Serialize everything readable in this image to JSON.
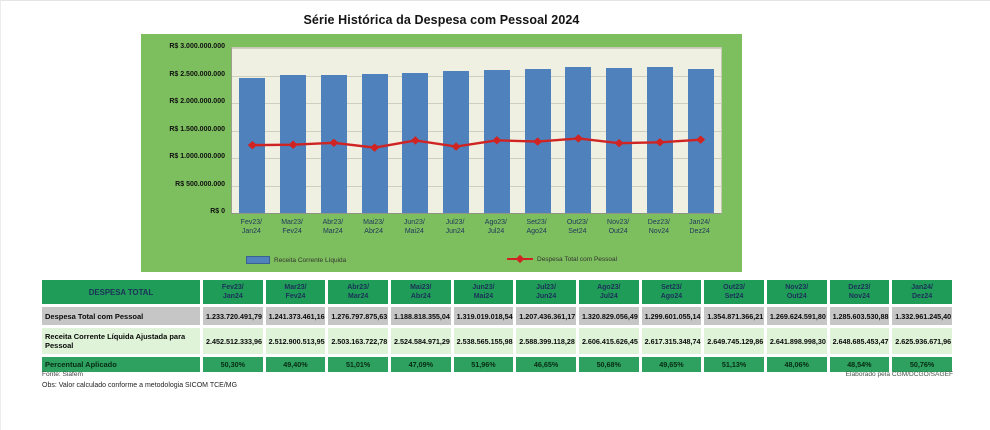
{
  "page": {
    "title": "Série Histórica da Despesa com Pessoal 2024"
  },
  "chart_data": {
    "type": "bar",
    "title": "Série Histórica da Despesa com Pessoal 2024",
    "categories": [
      "Fev23/\nJan24",
      "Mar23/\nFev24",
      "Abr23/\nMar24",
      "Mai23/\nAbr24",
      "Jun23/\nMai24",
      "Jul23/\nJun24",
      "Ago23/\nJul24",
      "Set23/\nAgo24",
      "Out23/\nSet24",
      "Nov23/\nOut24",
      "Dez23/\nNov24",
      "Jan24/\nDez24"
    ],
    "series": [
      {
        "name": "Receita Corrente Líquida",
        "type": "bar",
        "color": "#4f81bd",
        "values": [
          2452512333.96,
          2512900513.95,
          2503163722.78,
          2524584971.29,
          2538565155.98,
          2588399118.28,
          2606415626.45,
          2617315348.74,
          2649745129.86,
          2641898998.3,
          2648685453.47,
          2625936671.96
        ]
      },
      {
        "name": "Despesa Total com Pessoal",
        "type": "line",
        "color": "#d02423",
        "values": [
          1233720491.79,
          1241373461.16,
          1276797875.63,
          1188818355.04,
          1319019018.54,
          1207436361.17,
          1320829056.49,
          1299601055.14,
          1354871366.21,
          1269624591.8,
          1285603530.88,
          1332961245.4
        ]
      }
    ],
    "y_ticks": [
      "R$ 3.000.000.000",
      "R$ 2.500.000.000",
      "R$ 2.000.000.000",
      "R$ 1.500.000.000",
      "R$ 1.000.000.000",
      "R$ 500.000.000",
      "R$ 0"
    ],
    "ylim": [
      0,
      3000000000
    ],
    "grid": true,
    "legend_position": "bottom"
  },
  "table": {
    "corner_header": "DESPESA TOTAL",
    "period_headers": [
      "Fev23/\nJan24",
      "Mar23/\nFev24",
      "Abr23/\nMar24",
      "Mai23/\nAbr24",
      "Jun23/\nMai24",
      "Jul23/\nJun24",
      "Ago23/\nJul24",
      "Set23/\nAgo24",
      "Out23/\nSet24",
      "Nov23/\nOut24",
      "Dez23/\nNov24",
      "Jan24/\nDez24"
    ],
    "rows": [
      {
        "label": "Despesa Total com Pessoal",
        "values": [
          "1.233.720.491,79",
          "1.241.373.461,16",
          "1.276.797.875,63",
          "1.188.818.355,04",
          "1.319.019.018,54",
          "1.207.436.361,17",
          "1.320.829.056,49",
          "1.299.601.055,14",
          "1.354.871.366,21",
          "1.269.624.591,80",
          "1.285.603.530,88",
          "1.332.961.245,40"
        ]
      },
      {
        "label": "Receita Corrente Líquida Ajustada para Pessoal",
        "values": [
          "2.452.512.333,96",
          "2.512.900.513,95",
          "2.503.163.722,78",
          "2.524.584.971,29",
          "2.538.565.155,98",
          "2.588.399.118,28",
          "2.606.415.626,45",
          "2.617.315.348,74",
          "2.649.745.129,86",
          "2.641.898.998,30",
          "2.648.685.453,47",
          "2.625.936.671,96"
        ]
      },
      {
        "label": "Percentual Aplicado",
        "values": [
          "50,30%",
          "49,40%",
          "51,01%",
          "47,09%",
          "51,96%",
          "46,65%",
          "50,68%",
          "49,65%",
          "51,13%",
          "48,06%",
          "48,54%",
          "50,76%"
        ]
      }
    ]
  },
  "footnotes": {
    "fonte": "Fonte: Siafem",
    "obs": "Obs: Valor calculado conforme a metodologia SICOM TCE/MG",
    "elaborado": "Elaborado pela CGM/DCGO/SAGEF"
  },
  "colors": {
    "panel_green": "#7dbf5f",
    "plot_bg": "#eff0e1",
    "bar_blue": "#4f81bd",
    "line_red": "#d02423",
    "header_green": "#1f9c58",
    "row_gray": "#c6c6c6",
    "row_light_green": "#def3d7",
    "row_green": "#2ea160"
  }
}
